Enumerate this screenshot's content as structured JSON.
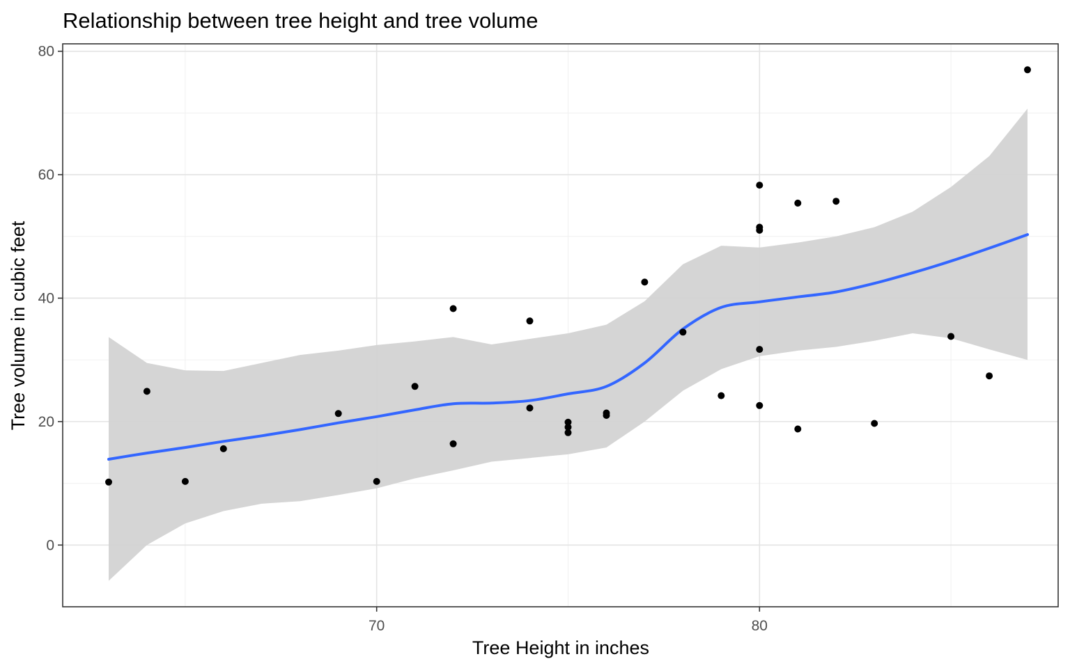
{
  "chart_data": {
    "type": "scatter",
    "title": "Relationship between tree height and tree volume",
    "xlabel": "Tree Height in inches",
    "ylabel": "Tree volume in cubic feet",
    "xlim": [
      61.8,
      87.8
    ],
    "ylim": [
      -10,
      81.2
    ],
    "xticks": [
      70,
      80
    ],
    "yticks": [
      0,
      20,
      40,
      60,
      80
    ],
    "grid": true,
    "points": [
      {
        "x": 63,
        "y": 10.2
      },
      {
        "x": 64,
        "y": 24.9
      },
      {
        "x": 65,
        "y": 10.3
      },
      {
        "x": 66,
        "y": 15.6
      },
      {
        "x": 69,
        "y": 21.3
      },
      {
        "x": 70,
        "y": 10.3
      },
      {
        "x": 71,
        "y": 25.7
      },
      {
        "x": 72,
        "y": 38.3
      },
      {
        "x": 72,
        "y": 16.4
      },
      {
        "x": 74,
        "y": 36.3
      },
      {
        "x": 74,
        "y": 22.2
      },
      {
        "x": 75,
        "y": 19.9
      },
      {
        "x": 75,
        "y": 19.1
      },
      {
        "x": 75,
        "y": 18.2
      },
      {
        "x": 76,
        "y": 21.4
      },
      {
        "x": 76,
        "y": 21.0
      },
      {
        "x": 77,
        "y": 42.6
      },
      {
        "x": 78,
        "y": 34.5
      },
      {
        "x": 79,
        "y": 24.2
      },
      {
        "x": 80,
        "y": 58.3
      },
      {
        "x": 80,
        "y": 51.5
      },
      {
        "x": 80,
        "y": 51.0
      },
      {
        "x": 80,
        "y": 31.7
      },
      {
        "x": 80,
        "y": 22.6
      },
      {
        "x": 81,
        "y": 55.4
      },
      {
        "x": 81,
        "y": 18.8
      },
      {
        "x": 82,
        "y": 55.7
      },
      {
        "x": 83,
        "y": 19.7
      },
      {
        "x": 85,
        "y": 33.8
      },
      {
        "x": 86,
        "y": 27.4
      },
      {
        "x": 87,
        "y": 77.0
      }
    ],
    "smooth": {
      "method": "loess",
      "color": "#3366ff",
      "band_color": "#d3d3d3",
      "x": [
        63,
        64,
        65,
        66,
        67,
        68,
        69,
        70,
        71,
        72,
        73,
        74,
        75,
        76,
        77,
        78,
        79,
        80,
        81,
        82,
        83,
        84,
        85,
        86,
        87
      ],
      "y": [
        13.9,
        14.9,
        15.8,
        16.8,
        17.7,
        18.7,
        19.8,
        20.8,
        21.9,
        22.9,
        23.0,
        23.4,
        24.5,
        25.7,
        29.5,
        35.0,
        38.5,
        39.4,
        40.2,
        41.0,
        42.4,
        44.1,
        46.0,
        48.1,
        50.3
      ],
      "lower": [
        -5.8,
        0.0,
        3.5,
        5.5,
        6.7,
        7.1,
        8.1,
        9.2,
        10.8,
        12.1,
        13.5,
        14.1,
        14.7,
        15.8,
        20.0,
        25.0,
        28.5,
        30.6,
        31.5,
        32.1,
        33.1,
        34.3,
        33.5,
        31.7,
        30.0
      ],
      "upper": [
        33.7,
        29.5,
        28.3,
        28.2,
        29.5,
        30.8,
        31.5,
        32.4,
        33.0,
        33.7,
        32.5,
        33.4,
        34.3,
        35.7,
        39.5,
        45.5,
        48.5,
        48.2,
        49.0,
        50.0,
        51.5,
        54.0,
        58.0,
        63.0,
        70.7
      ]
    }
  }
}
